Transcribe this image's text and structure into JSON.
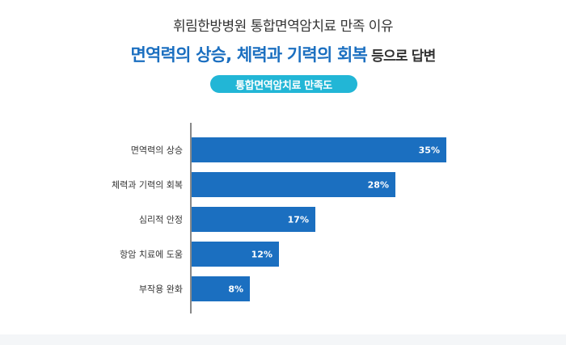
{
  "header": {
    "line1": "휘림한방병원 통합면역암치료 만족 이유",
    "line2_highlight": "면역력의 상승, 체력과 기력의 회복",
    "line2_rest": " 등으로 답변",
    "badge": "통합면역암치료 만족도"
  },
  "colors": {
    "accent": "#1b6fc0",
    "bar": "#1b6fc0",
    "badge": "#22b6d6",
    "axis": "#888888",
    "text": "#333333"
  },
  "chart_data": {
    "type": "bar",
    "orientation": "horizontal",
    "categories": [
      "면역력의 상승",
      "체력과 기력의 회복",
      "심리적 안정",
      "항암 치료에 도움",
      "부작용 완화"
    ],
    "values": [
      35,
      28,
      17,
      12,
      8
    ],
    "value_labels": [
      "35%",
      "28%",
      "17%",
      "12%",
      "8%"
    ],
    "unit": "%",
    "xlim": [
      0,
      35
    ],
    "grid": false,
    "legend": "none"
  }
}
